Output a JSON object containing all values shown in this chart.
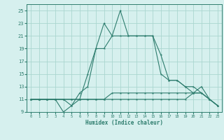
{
  "xlabel": "Humidex (Indice chaleur)",
  "x": [
    0,
    1,
    2,
    3,
    4,
    5,
    6,
    7,
    8,
    9,
    10,
    11,
    12,
    13,
    14,
    15,
    16,
    17,
    18,
    19,
    20,
    21,
    22,
    23
  ],
  "series": [
    [
      11,
      11,
      11,
      11,
      9,
      10,
      12,
      13,
      19,
      23,
      21,
      25,
      21,
      21,
      21,
      21,
      15,
      14,
      14,
      13,
      12,
      13,
      11,
      10
    ],
    [
      11,
      11,
      11,
      11,
      11,
      10,
      11,
      15,
      19,
      19,
      21,
      21,
      21,
      21,
      21,
      21,
      18,
      14,
      14,
      13,
      13,
      12,
      11,
      10
    ],
    [
      11,
      11,
      11,
      11,
      11,
      11,
      11,
      11,
      11,
      11,
      12,
      12,
      12,
      12,
      12,
      12,
      12,
      12,
      12,
      12,
      12,
      12,
      11,
      10
    ],
    [
      11,
      11,
      11,
      11,
      11,
      11,
      11,
      11,
      11,
      11,
      11,
      11,
      11,
      11,
      11,
      11,
      11,
      11,
      11,
      11,
      12,
      12,
      11,
      10
    ]
  ],
  "line_color": "#2e7d6e",
  "bg_color": "#d6f0ee",
  "grid_color": "#aad6d0",
  "ylim": [
    9,
    26
  ],
  "xlim": [
    -0.5,
    23.5
  ],
  "yticks": [
    9,
    11,
    13,
    15,
    17,
    19,
    21,
    23,
    25
  ],
  "xticks": [
    0,
    1,
    2,
    3,
    4,
    5,
    6,
    7,
    8,
    9,
    10,
    11,
    12,
    13,
    14,
    15,
    16,
    17,
    18,
    19,
    20,
    21,
    22,
    23
  ]
}
